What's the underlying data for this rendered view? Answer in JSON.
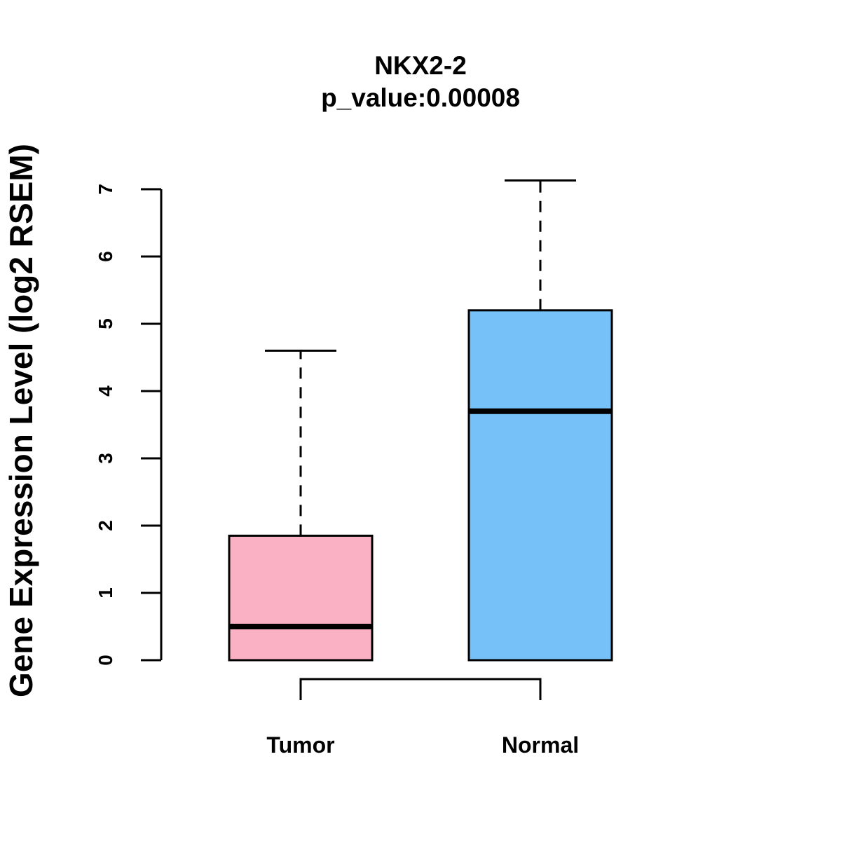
{
  "chart_data": {
    "type": "boxplot",
    "title": "NKX2-2",
    "subtitle": "p_value:0.00008",
    "xlabel": "",
    "ylabel": "Gene Expression Level (log2 RSEM)",
    "ylim": [
      0,
      7
    ],
    "yticks": [
      "0",
      "1",
      "2",
      "3",
      "4",
      "5",
      "6",
      "7"
    ],
    "grid": false,
    "legend": "none",
    "categories": [
      "Tumor",
      "Normal"
    ],
    "boxes": [
      {
        "name": "Tumor",
        "min": 0,
        "q1": 0,
        "median": 0.5,
        "q3": 1.85,
        "max": 4.6,
        "color": "#FBB1C4"
      },
      {
        "name": "Normal",
        "min": 0,
        "q1": 0,
        "median": 3.7,
        "q3": 5.2,
        "max": 7.13,
        "color": "#76C1F8"
      }
    ],
    "comparison_bracket": [
      "Tumor",
      "Normal"
    ]
  }
}
